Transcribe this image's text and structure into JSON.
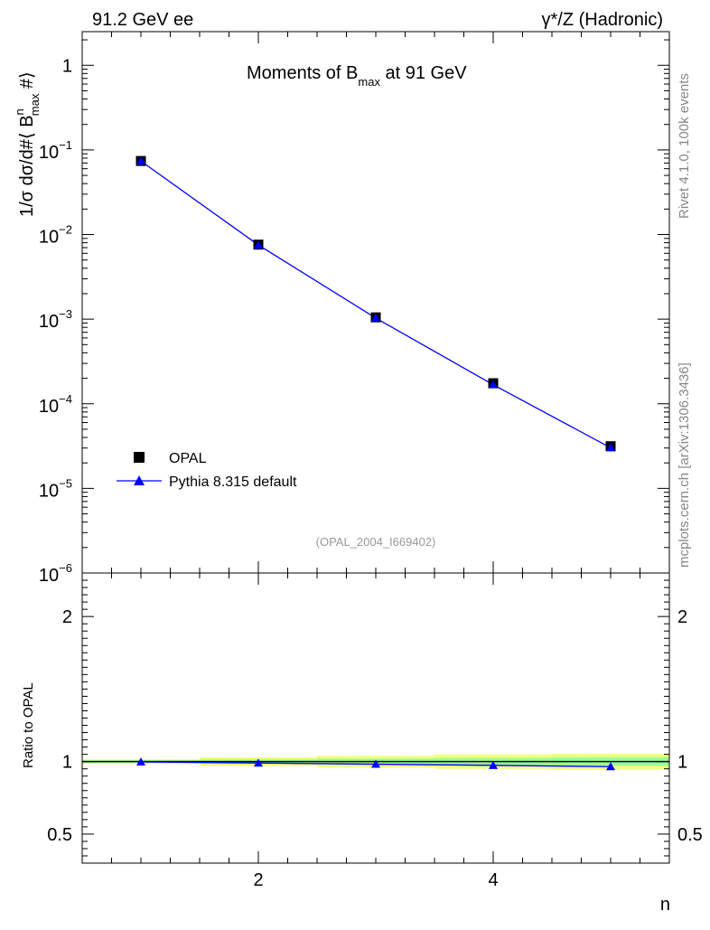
{
  "header": {
    "left": "91.2 GeV ee",
    "right": "γ*/Z (Hadronic)"
  },
  "side_labels": {
    "rivet": "Rivet 4.1.0,  100k events",
    "mcplots": "mcplots.cern.ch [arXiv:1306.3436]"
  },
  "chart_data": [
    {
      "type": "scatter",
      "title": "Moments of B_max at 91 GeV",
      "title_main_1": "Moments of B",
      "title_sub": "max",
      "title_main_2": " at 91 GeV",
      "ylabel": "1/σ  dσ/d#⟨ B^n_max #⟩",
      "ylabel_text_1": "1/σ  dσ/d#⟨ B",
      "ylabel_sup": "n",
      "ylabel_sub": "max",
      "ylabel_text_2": " #⟩",
      "xlabel": "",
      "yscale": "log",
      "xlim": [
        0.5,
        5.5
      ],
      "ylim": [
        1e-06,
        2.5
      ],
      "y_ticks": [
        {
          "value": 1,
          "label": "1"
        },
        {
          "value": 0.1,
          "base": "10",
          "exp": "−1"
        },
        {
          "value": 0.01,
          "base": "10",
          "exp": "−2"
        },
        {
          "value": 0.001,
          "base": "10",
          "exp": "−3"
        },
        {
          "value": 0.0001,
          "base": "10",
          "exp": "−4"
        },
        {
          "value": 1e-05,
          "base": "10",
          "exp": "−5"
        },
        {
          "value": 1e-06,
          "base": "10",
          "exp": "−6"
        }
      ],
      "series": [
        {
          "name": "OPAL",
          "marker": "square",
          "color": "#000000",
          "x": [
            1,
            2,
            3,
            4,
            5
          ],
          "y": [
            0.074,
            0.0076,
            0.00105,
            0.000175,
            3.15e-05
          ]
        },
        {
          "name": "Pythia 8.315 default",
          "marker": "triangle",
          "color": "#0000ff",
          "x": [
            1,
            2,
            3,
            4,
            5
          ],
          "y": [
            0.0738,
            0.00753,
            0.00103,
            0.000168,
            3.02e-05
          ]
        }
      ],
      "legend": [
        "OPAL",
        "Pythia 8.315 default"
      ],
      "legend_position": "bottom-left",
      "annotation": "(OPAL_2004_I669402)"
    },
    {
      "type": "line",
      "title": "",
      "ylabel": "Ratio to OPAL",
      "xlabel": "n",
      "xlim": [
        0.5,
        5.5
      ],
      "ylim": [
        0.3,
        2.3
      ],
      "x_ticks": [
        2,
        4
      ],
      "x_tick_labels": [
        "2",
        "4"
      ],
      "y_ticks": [
        0.5,
        1,
        2
      ],
      "y_tick_labels": [
        "0.5",
        "1",
        "2"
      ],
      "bands": {
        "x_bins": [
          [
            0.5,
            1.5
          ],
          [
            1.5,
            2.5
          ],
          [
            2.5,
            3.5
          ],
          [
            3.5,
            4.5
          ],
          [
            4.5,
            5.5
          ]
        ],
        "stat_halfwidth": [
          0.01,
          0.015,
          0.02,
          0.025,
          0.03
        ],
        "total_halfwidth": [
          0.015,
          0.03,
          0.04,
          0.05,
          0.055
        ]
      },
      "series": [
        {
          "name": "Pythia 8.315 default",
          "color": "#0000ff",
          "x": [
            1,
            2,
            3,
            4,
            5
          ],
          "y": [
            0.998,
            0.99,
            0.982,
            0.974,
            0.965
          ]
        }
      ]
    }
  ]
}
